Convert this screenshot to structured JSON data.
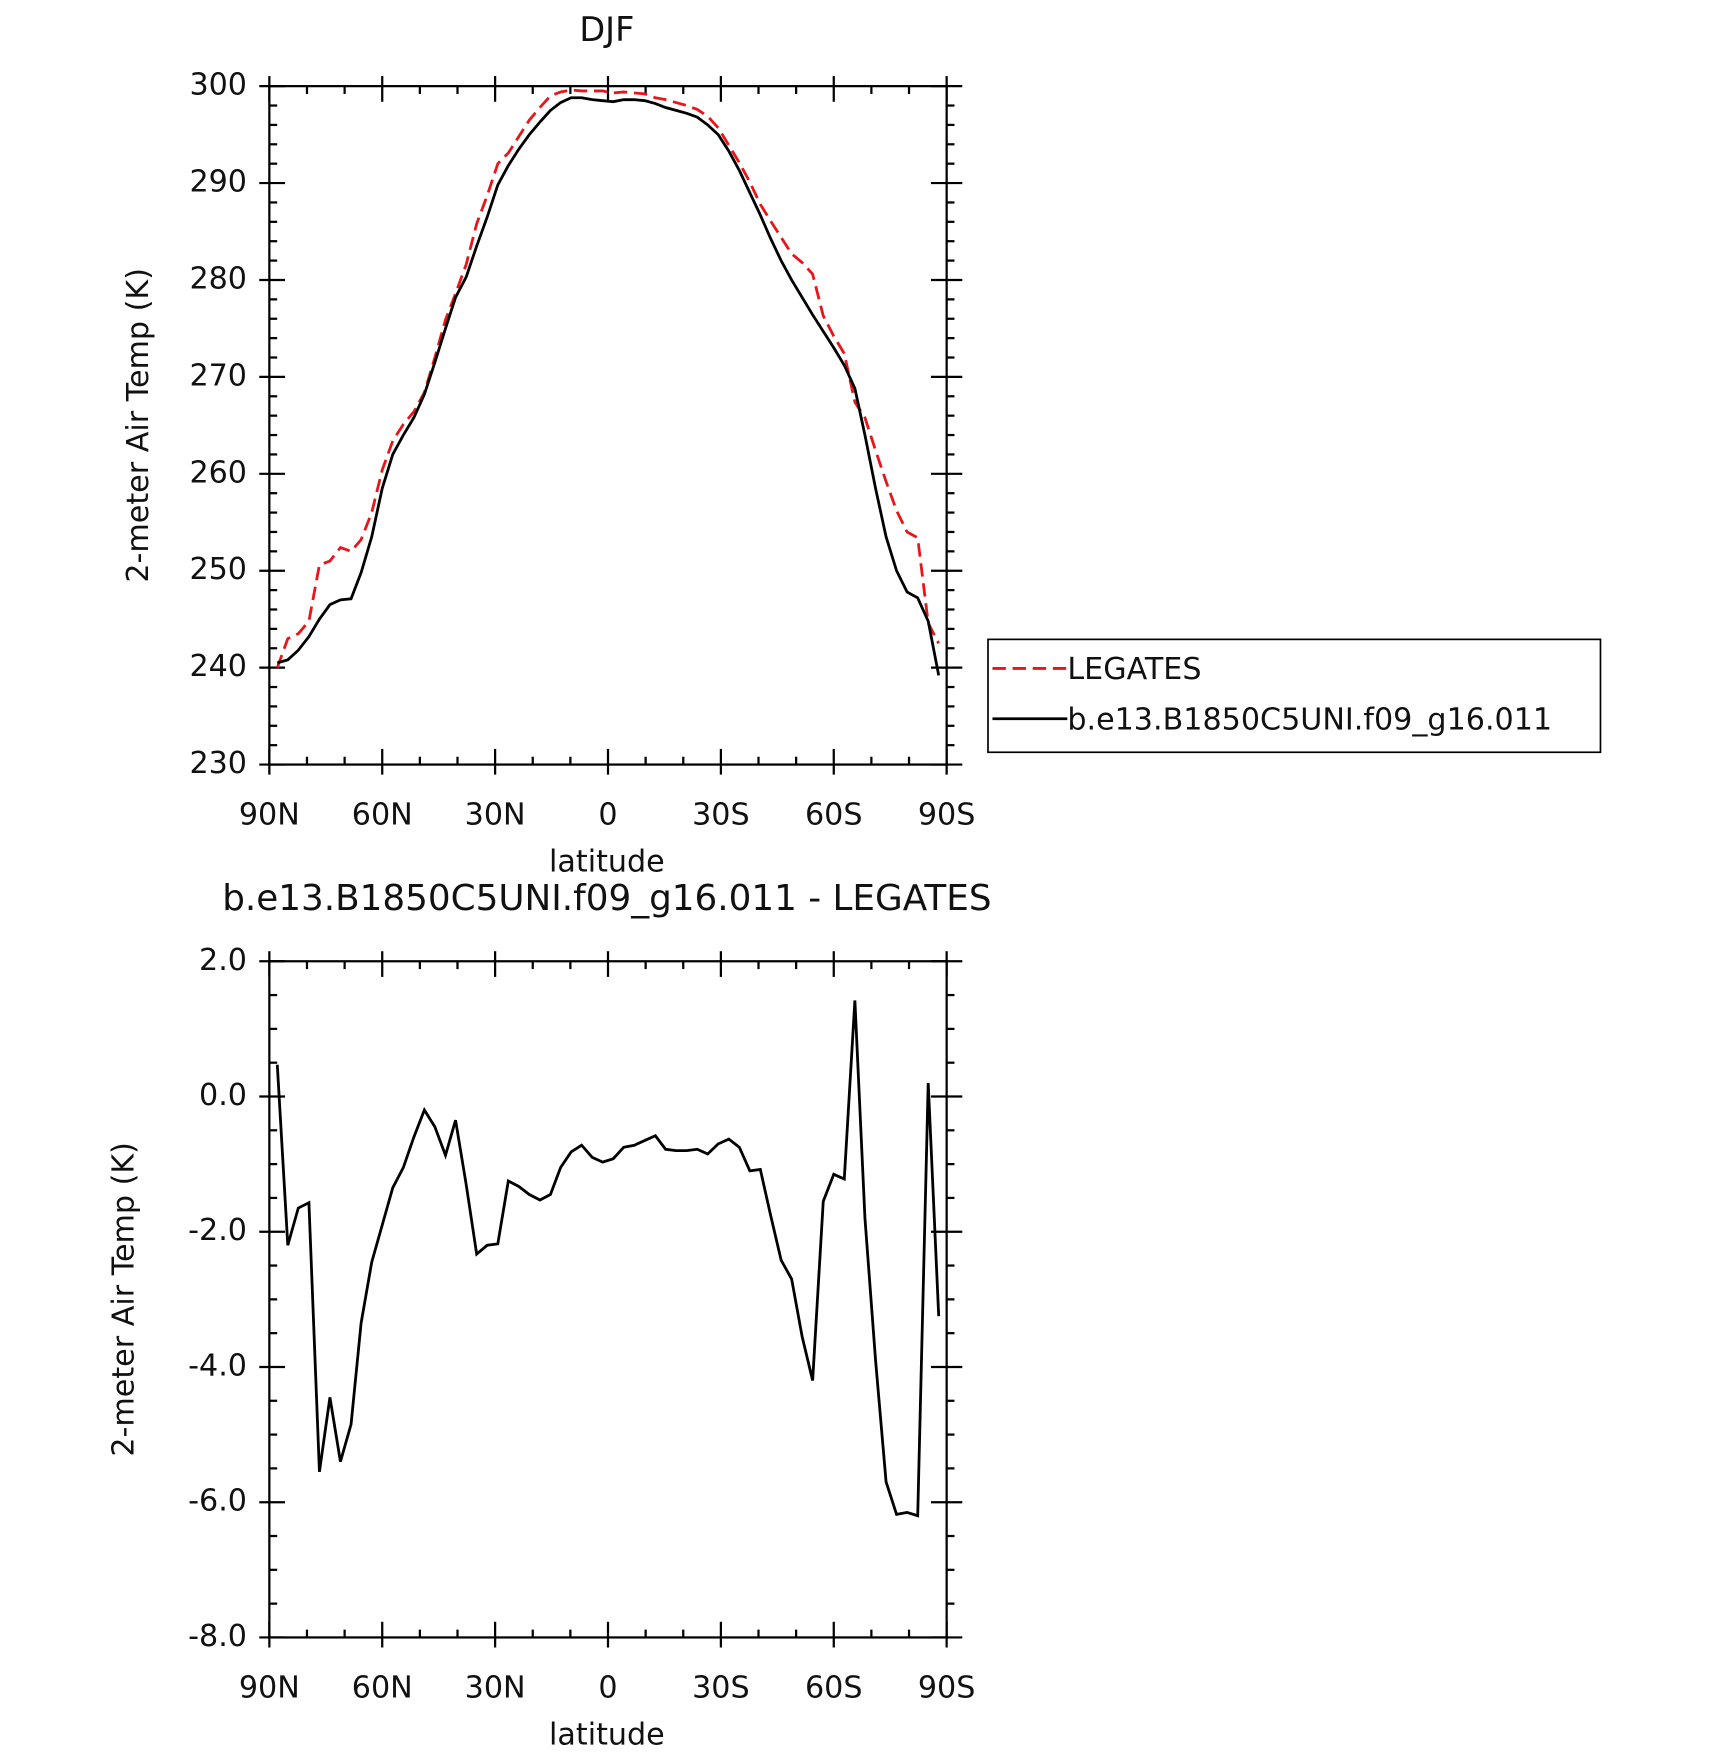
{
  "chart_data": [
    {
      "type": "line",
      "title": "DJF",
      "xlabel": "latitude",
      "ylabel": "2-meter Air Temp (K)",
      "x": [
        87.9,
        85.1,
        82.3,
        79.5,
        76.7,
        73.9,
        71.1,
        68.3,
        65.6,
        62.8,
        60.0,
        57.2,
        54.4,
        51.6,
        48.8,
        46.0,
        43.2,
        40.5,
        37.7,
        34.9,
        32.1,
        29.3,
        26.5,
        23.7,
        20.9,
        18.1,
        15.3,
        12.6,
        9.8,
        7.0,
        4.2,
        1.4,
        -1.4,
        -4.2,
        -7.0,
        -9.8,
        -12.6,
        -15.3,
        -18.1,
        -20.9,
        -23.7,
        -26.5,
        -29.3,
        -32.1,
        -34.9,
        -37.7,
        -40.5,
        -43.2,
        -46.0,
        -48.8,
        -51.6,
        -54.4,
        -57.2,
        -60.0,
        -62.8,
        -65.6,
        -68.3,
        -71.1,
        -73.9,
        -76.7,
        -79.5,
        -82.3,
        -85.1,
        -87.9
      ],
      "series": [
        {
          "name": "LEGATES",
          "color": "#e8161b",
          "dash": true,
          "values": [
            240.0,
            243.0,
            243.5,
            244.8,
            250.6,
            251.0,
            252.4,
            252.0,
            253.2,
            256.0,
            260.4,
            263.4,
            265.1,
            266.4,
            268.4,
            272.0,
            275.9,
            278.6,
            281.6,
            285.8,
            288.7,
            292.0,
            293.1,
            294.8,
            296.5,
            297.8,
            299.0,
            299.4,
            299.6,
            299.5,
            299.5,
            299.5,
            299.3,
            299.4,
            299.3,
            299.2,
            298.8,
            298.6,
            298.3,
            298.0,
            297.6,
            296.9,
            295.7,
            293.9,
            292.1,
            290.1,
            287.8,
            286.1,
            284.4,
            282.7,
            281.8,
            280.6,
            276.3,
            274.2,
            272.4,
            267.4,
            265.8,
            262.4,
            259.2,
            256.2,
            254.0,
            253.4,
            244.6,
            242.5
          ]
        },
        {
          "name": "b.e13.B1850C5UNI.f09_g16.011",
          "color": "#000000",
          "dash": false,
          "values": [
            240.5,
            240.8,
            241.8,
            243.2,
            245.0,
            246.5,
            247.0,
            247.1,
            249.8,
            253.5,
            258.5,
            262.0,
            264.0,
            265.8,
            268.2,
            271.5,
            275.0,
            278.2,
            280.3,
            283.5,
            286.5,
            289.8,
            291.8,
            293.5,
            295.0,
            296.3,
            297.5,
            298.3,
            298.8,
            298.8,
            298.6,
            298.5,
            298.4,
            298.6,
            298.6,
            298.5,
            298.2,
            297.8,
            297.5,
            297.2,
            296.8,
            296.0,
            295.0,
            293.3,
            291.3,
            289.0,
            286.7,
            284.3,
            282.0,
            280.0,
            278.2,
            276.4,
            274.7,
            273.0,
            271.2,
            268.8,
            264.0,
            258.5,
            253.5,
            250.0,
            247.8,
            247.2,
            244.8,
            239.2
          ]
        }
      ],
      "xlim": [
        90,
        -90
      ],
      "xticks": [
        {
          "value": 90,
          "label": "90N"
        },
        {
          "value": 60,
          "label": "60N"
        },
        {
          "value": 30,
          "label": "30N"
        },
        0,
        {
          "value": -30,
          "label": "30S"
        },
        {
          "value": -60,
          "label": "60S"
        },
        {
          "value": -90,
          "label": "90S"
        }
      ],
      "ylim": [
        230,
        300
      ],
      "yticks": [
        230,
        240,
        250,
        260,
        270,
        280,
        290,
        300
      ],
      "legend": "right"
    },
    {
      "type": "line",
      "title": "b.e13.B1850C5UNI.f09_g16.011 - LEGATES",
      "xlabel": "latitude",
      "ylabel": "2-meter Air Temp (K)",
      "x": [
        87.9,
        85.1,
        82.3,
        79.5,
        76.7,
        73.9,
        71.1,
        68.3,
        65.6,
        62.8,
        60.0,
        57.2,
        54.4,
        51.6,
        48.8,
        46.0,
        43.2,
        40.5,
        37.7,
        34.9,
        32.1,
        29.3,
        26.5,
        23.7,
        20.9,
        18.1,
        15.3,
        12.6,
        9.8,
        7.0,
        4.2,
        1.4,
        -1.4,
        -4.2,
        -7.0,
        -9.8,
        -12.6,
        -15.3,
        -18.1,
        -20.9,
        -23.7,
        -26.5,
        -29.3,
        -32.1,
        -34.9,
        -37.7,
        -40.5,
        -43.2,
        -46.0,
        -48.8,
        -51.6,
        -54.4,
        -57.2,
        -60.0,
        -62.8,
        -65.6,
        -68.3,
        -71.1,
        -73.9,
        -76.7,
        -79.5,
        -82.3,
        -85.1,
        -87.9
      ],
      "color": "#000000",
      "values": [
        0.47,
        -2.2,
        -1.65,
        -1.57,
        -5.55,
        -4.45,
        -5.4,
        -4.85,
        -3.35,
        -2.45,
        -1.9,
        -1.35,
        -1.05,
        -0.6,
        -0.2,
        -0.45,
        -0.87,
        -0.35,
        -1.3,
        -2.33,
        -2.2,
        -2.18,
        -1.25,
        -1.33,
        -1.45,
        -1.53,
        -1.45,
        -1.05,
        -0.82,
        -0.72,
        -0.9,
        -0.97,
        -0.92,
        -0.75,
        -0.72,
        -0.65,
        -0.58,
        -0.78,
        -0.8,
        -0.8,
        -0.78,
        -0.85,
        -0.7,
        -0.63,
        -0.75,
        -1.1,
        -1.08,
        -1.75,
        -2.42,
        -2.7,
        -3.55,
        -4.2,
        -1.55,
        -1.15,
        -1.22,
        1.42,
        -1.8,
        -3.9,
        -5.7,
        -6.18,
        -6.15,
        -6.2,
        0.2,
        -3.25
      ],
      "xlim": [
        90,
        -90
      ],
      "xticks": [
        {
          "value": 90,
          "label": "90N"
        },
        {
          "value": 60,
          "label": "60N"
        },
        {
          "value": 30,
          "label": "30N"
        },
        0,
        {
          "value": -30,
          "label": "30S"
        },
        {
          "value": -60,
          "label": "60S"
        },
        {
          "value": -90,
          "label": "90S"
        }
      ],
      "ylim": [
        -8,
        2
      ],
      "yticks": [
        {
          "value": -8,
          "label": "-8.0"
        },
        {
          "value": -6,
          "label": "-6.0"
        },
        {
          "value": -4,
          "label": "-4.0"
        },
        {
          "value": -2,
          "label": "-2.0"
        },
        {
          "value": 0,
          "label": "0.0"
        },
        {
          "value": 2,
          "label": "2.0"
        }
      ]
    }
  ]
}
